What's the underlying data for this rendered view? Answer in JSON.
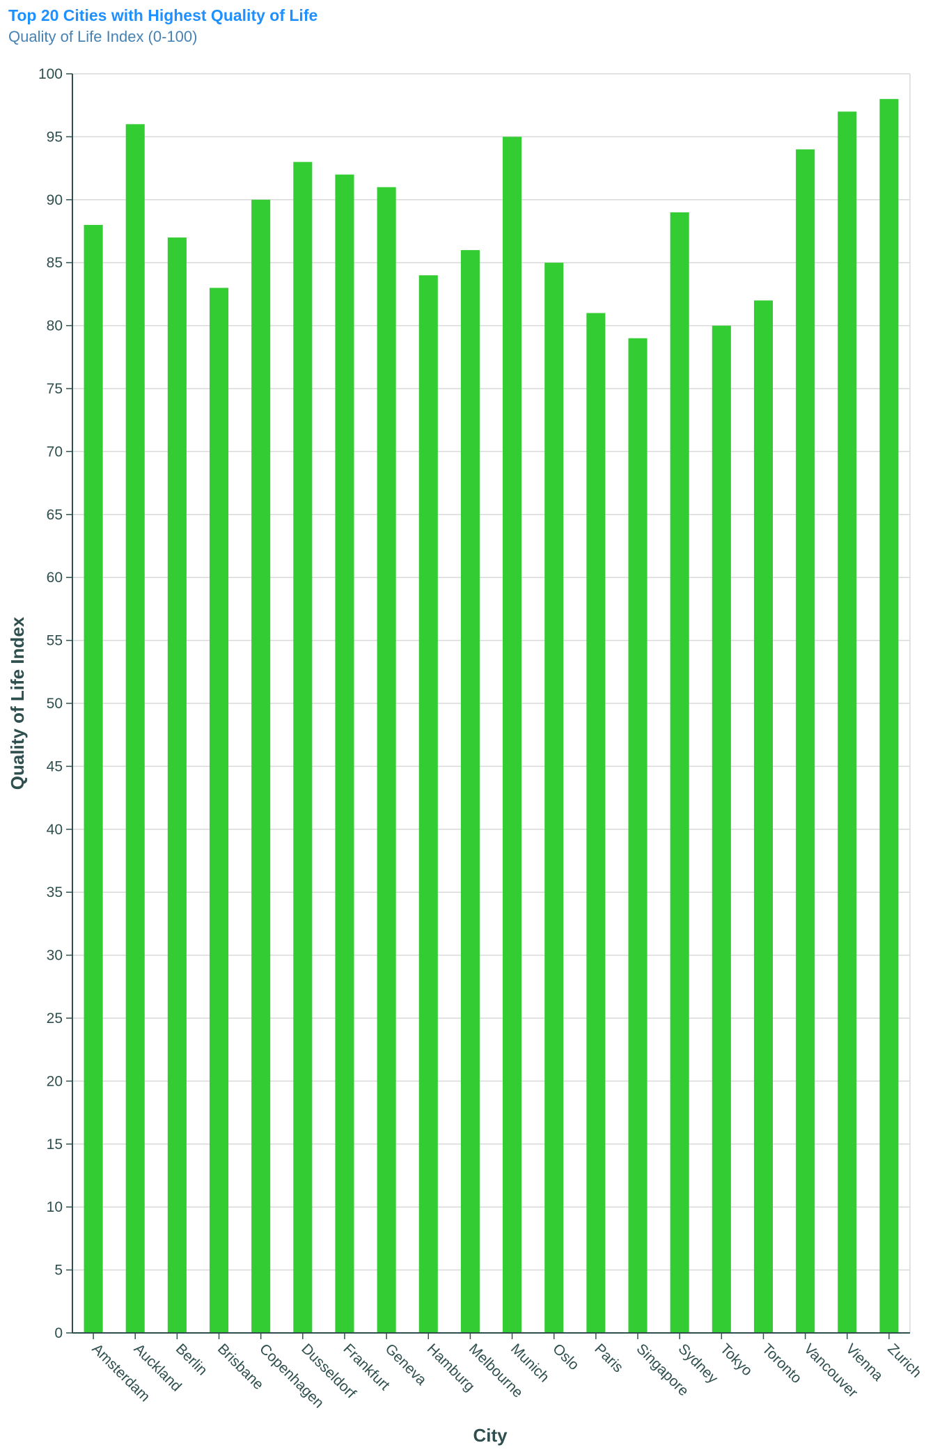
{
  "chart_data": {
    "type": "bar",
    "title": "Top 20 Cities with Highest Quality of Life",
    "subtitle": "Quality of Life Index (0-100)",
    "xlabel": "City",
    "ylabel": "Quality of Life Index",
    "categories": [
      "Amsterdam",
      "Auckland",
      "Berlin",
      "Brisbane",
      "Copenhagen",
      "Dusseldorf",
      "Frankfurt",
      "Geneva",
      "Hamburg",
      "Melbourne",
      "Munich",
      "Oslo",
      "Paris",
      "Singapore",
      "Sydney",
      "Tokyo",
      "Toronto",
      "Vancouver",
      "Vienna",
      "Zurich"
    ],
    "values": [
      88,
      96,
      87,
      83,
      90,
      93,
      92,
      91,
      84,
      86,
      95,
      85,
      81,
      79,
      89,
      80,
      82,
      94,
      97,
      98
    ],
    "ylim": [
      0,
      100
    ],
    "yticks": [
      0,
      5,
      10,
      15,
      20,
      25,
      30,
      35,
      40,
      45,
      50,
      55,
      60,
      65,
      70,
      75,
      80,
      85,
      90,
      95,
      100
    ],
    "grid": true,
    "legend": "none",
    "colors": {
      "bar": "#33cc33",
      "title": "#1e90ff",
      "subtitle": "#4682b4",
      "text": "#2f4f4f",
      "grid": "#d9d9d9",
      "axis": "#2f4f4f"
    }
  }
}
